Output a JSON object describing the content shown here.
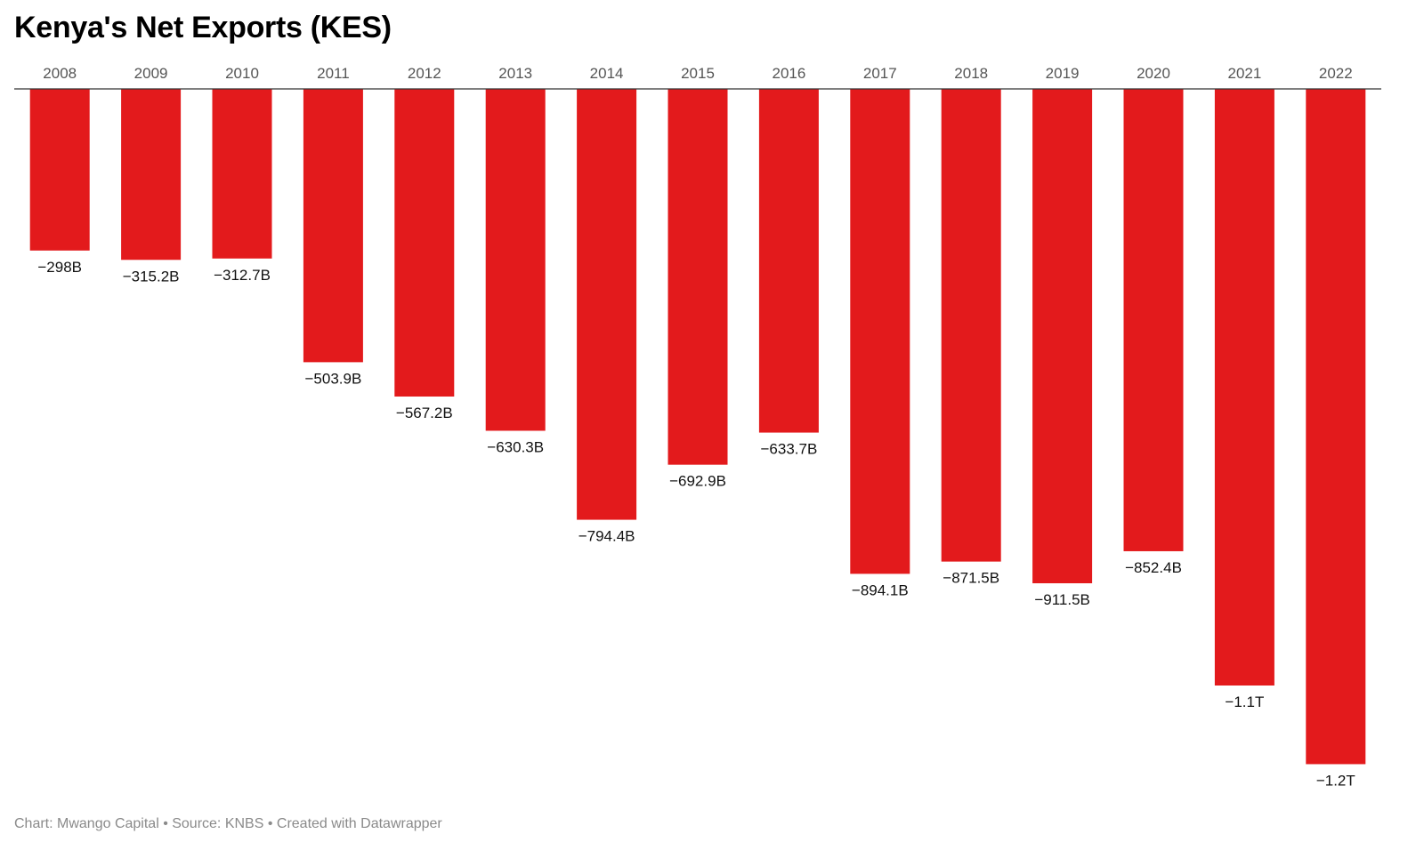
{
  "title": "Kenya's Net Exports (KES)",
  "footer": "Chart: Mwango Capital • Source: KNBS • Created with Datawrapper",
  "colors": {
    "bar": "#e31a1c",
    "axis_line": "#333333",
    "tick_label": "#555555",
    "value_label": "#111111"
  },
  "chart_data": {
    "type": "bar",
    "orientation": "vertical",
    "categories": [
      "2008",
      "2009",
      "2010",
      "2011",
      "2012",
      "2013",
      "2014",
      "2015",
      "2016",
      "2017",
      "2018",
      "2019",
      "2020",
      "2021",
      "2022"
    ],
    "values": [
      -298,
      -315.2,
      -312.7,
      -503.9,
      -567.2,
      -630.3,
      -794.4,
      -692.9,
      -633.7,
      -894.1,
      -871.5,
      -911.5,
      -852.4,
      -1100,
      -1245
    ],
    "value_labels": [
      "−298B",
      "−315.2B",
      "−312.7B",
      "−503.9B",
      "−567.2B",
      "−630.3B",
      "−794.4B",
      "−692.9B",
      "−633.7B",
      "−894.1B",
      "−871.5B",
      "−911.5B",
      "−852.4B",
      "−1.1T",
      "−1.2T"
    ],
    "unit": "billion KES",
    "x_axis_position": "top",
    "grid": false,
    "legend": "none",
    "title": "Kenya's Net Exports (KES)"
  }
}
